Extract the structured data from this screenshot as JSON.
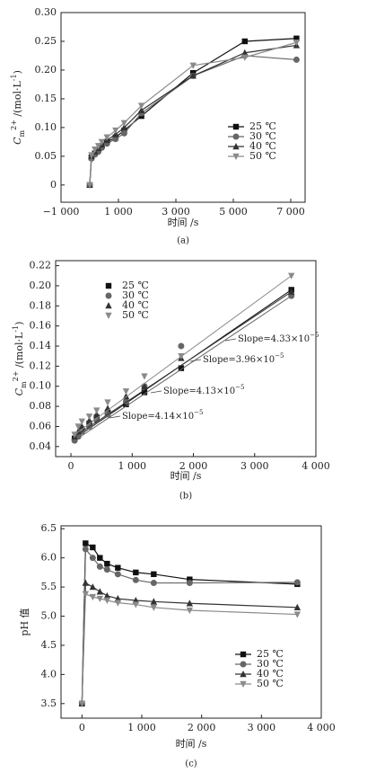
{
  "chart_data": [
    {
      "type": "line",
      "caption": "(a)",
      "xlabel": "时间 /s",
      "ylabel": [
        "C",
        "m",
        "2+",
        " /(mol·L",
        "-1",
        ")"
      ],
      "x": [
        0,
        60,
        180,
        300,
        420,
        600,
        900,
        1200,
        1800,
        3600,
        5400,
        7200
      ],
      "xlim": [
        -1000,
        7500
      ],
      "xticks": [
        {
          "value": -1000,
          "label": "−1 000"
        },
        {
          "value": 1000,
          "label": "1 000"
        },
        {
          "value": 3000,
          "label": "3 000"
        },
        {
          "value": 5000,
          "label": "5 000"
        },
        {
          "value": 7000,
          "label": "7 000"
        }
      ],
      "ylim": [
        -0.03,
        0.3
      ],
      "yticks": [
        0,
        {
          "value": 0.05,
          "label": "0.05"
        },
        {
          "value": 0.1,
          "label": "0.10"
        },
        0.15,
        {
          "value": 0.2,
          "label": "0.20"
        },
        0.25,
        {
          "value": 0.3,
          "label": "0.30"
        }
      ],
      "legend": "lower right",
      "series": [
        {
          "name": "25 ℃",
          "color": "#111111",
          "marker": "square",
          "values": [
            0,
            0.048,
            0.055,
            0.062,
            0.068,
            0.075,
            0.083,
            0.095,
            0.12,
            0.195,
            0.25,
            0.255
          ]
        },
        {
          "name": "30 ℃",
          "color": "#666666",
          "marker": "circle",
          "values": [
            0,
            0.046,
            0.053,
            0.058,
            0.065,
            0.072,
            0.08,
            0.09,
            0.125,
            0.19,
            0.225,
            0.218
          ]
        },
        {
          "name": "40 ℃",
          "color": "#333333",
          "marker": "triangle-up",
          "values": [
            0,
            0.05,
            0.058,
            0.064,
            0.07,
            0.078,
            0.088,
            0.1,
            0.13,
            0.19,
            0.23,
            0.243
          ]
        },
        {
          "name": "50 ℃",
          "color": "#8a8a8a",
          "marker": "triangle-down",
          "values": [
            0,
            0.052,
            0.062,
            0.068,
            0.075,
            0.083,
            0.095,
            0.108,
            0.138,
            0.208,
            0.222,
            0.248
          ]
        }
      ]
    },
    {
      "type": "scatter",
      "caption": "(b)",
      "xlabel": "时间 /s",
      "trendline": true,
      "ylabel": [
        "C",
        "m",
        "2+",
        " /(mol·L",
        "-1",
        ")"
      ],
      "x": [
        60,
        120,
        180,
        300,
        420,
        600,
        900,
        1200,
        1800,
        3600
      ],
      "xlim": [
        -250,
        4000
      ],
      "xticks": [
        0,
        {
          "value": 1000,
          "label": "1 000"
        },
        {
          "value": 2000,
          "label": "2 000"
        },
        {
          "value": 3000,
          "label": "3 000"
        },
        {
          "value": 4000,
          "label": "4 000"
        }
      ],
      "ylim": [
        0.03,
        0.225
      ],
      "yticks": [
        0.04,
        0.06,
        0.08,
        {
          "value": 0.1,
          "label": "0.10"
        },
        0.12,
        0.14,
        0.16,
        0.18,
        {
          "value": 0.2,
          "label": "0.20"
        },
        0.22
      ],
      "legend": "upper left",
      "annotations": [
        {
          "text": "Slope=4.33×10",
          "exp": "−5"
        },
        {
          "text": "Slope=3.96×10",
          "exp": "−5"
        },
        {
          "text": "Slope=4.13×10",
          "exp": "−5"
        },
        {
          "text": "Slope=4.14×10",
          "exp": "−5"
        }
      ],
      "series": [
        {
          "name": "25 ℃",
          "color": "#111111",
          "marker": "square",
          "values": [
            0.048,
            0.052,
            0.057,
            0.063,
            0.069,
            0.074,
            0.082,
            0.094,
            0.118,
            0.196
          ]
        },
        {
          "name": "30 ℃",
          "color": "#666666",
          "marker": "circle",
          "values": [
            0.046,
            0.05,
            0.055,
            0.06,
            0.066,
            0.072,
            0.085,
            0.1,
            0.14,
            0.19
          ]
        },
        {
          "name": "40 ℃",
          "color": "#333333",
          "marker": "triangle-up",
          "values": [
            0.05,
            0.055,
            0.06,
            0.066,
            0.072,
            0.078,
            0.09,
            0.1,
            0.128,
            0.194
          ]
        },
        {
          "name": "50 ℃",
          "color": "#8a8a8a",
          "marker": "triangle-down",
          "values": [
            0.052,
            0.06,
            0.065,
            0.07,
            0.076,
            0.084,
            0.095,
            0.11,
            0.13,
            0.21
          ]
        }
      ]
    },
    {
      "type": "line",
      "caption": "(c)",
      "xlabel": "时间 /s",
      "ylabel": [
        "pH 值"
      ],
      "x": [
        0,
        60,
        180,
        300,
        420,
        600,
        900,
        1200,
        1800,
        3600
      ],
      "xlim": [
        -350,
        4000
      ],
      "xticks": [
        0,
        {
          "value": 1000,
          "label": "1 000"
        },
        {
          "value": 2000,
          "label": "2 000"
        },
        {
          "value": 3000,
          "label": "3 000"
        },
        {
          "value": 4000,
          "label": "4 000"
        }
      ],
      "ylim": [
        3.25,
        6.55
      ],
      "yticks": [
        3.5,
        {
          "value": 4,
          "label": "4.0"
        },
        4.5,
        {
          "value": 5,
          "label": "5.0"
        },
        5.5,
        {
          "value": 6,
          "label": "6.0"
        },
        6.5
      ],
      "legend": "lower right",
      "series": [
        {
          "name": "25 ℃",
          "color": "#111111",
          "marker": "square",
          "values": [
            3.5,
            6.25,
            6.18,
            6.0,
            5.9,
            5.83,
            5.75,
            5.72,
            5.63,
            5.55
          ]
        },
        {
          "name": "30 ℃",
          "color": "#666666",
          "marker": "circle",
          "values": [
            3.5,
            6.15,
            6.0,
            5.85,
            5.8,
            5.72,
            5.62,
            5.57,
            5.57,
            5.58
          ]
        },
        {
          "name": "40 ℃",
          "color": "#333333",
          "marker": "triangle-up",
          "values": [
            3.5,
            5.57,
            5.5,
            5.42,
            5.35,
            5.3,
            5.27,
            5.25,
            5.22,
            5.15
          ]
        },
        {
          "name": "50 ℃",
          "color": "#8a8a8a",
          "marker": "triangle-down",
          "values": [
            3.5,
            5.38,
            5.33,
            5.3,
            5.27,
            5.23,
            5.2,
            5.15,
            5.1,
            5.03
          ]
        }
      ]
    }
  ]
}
